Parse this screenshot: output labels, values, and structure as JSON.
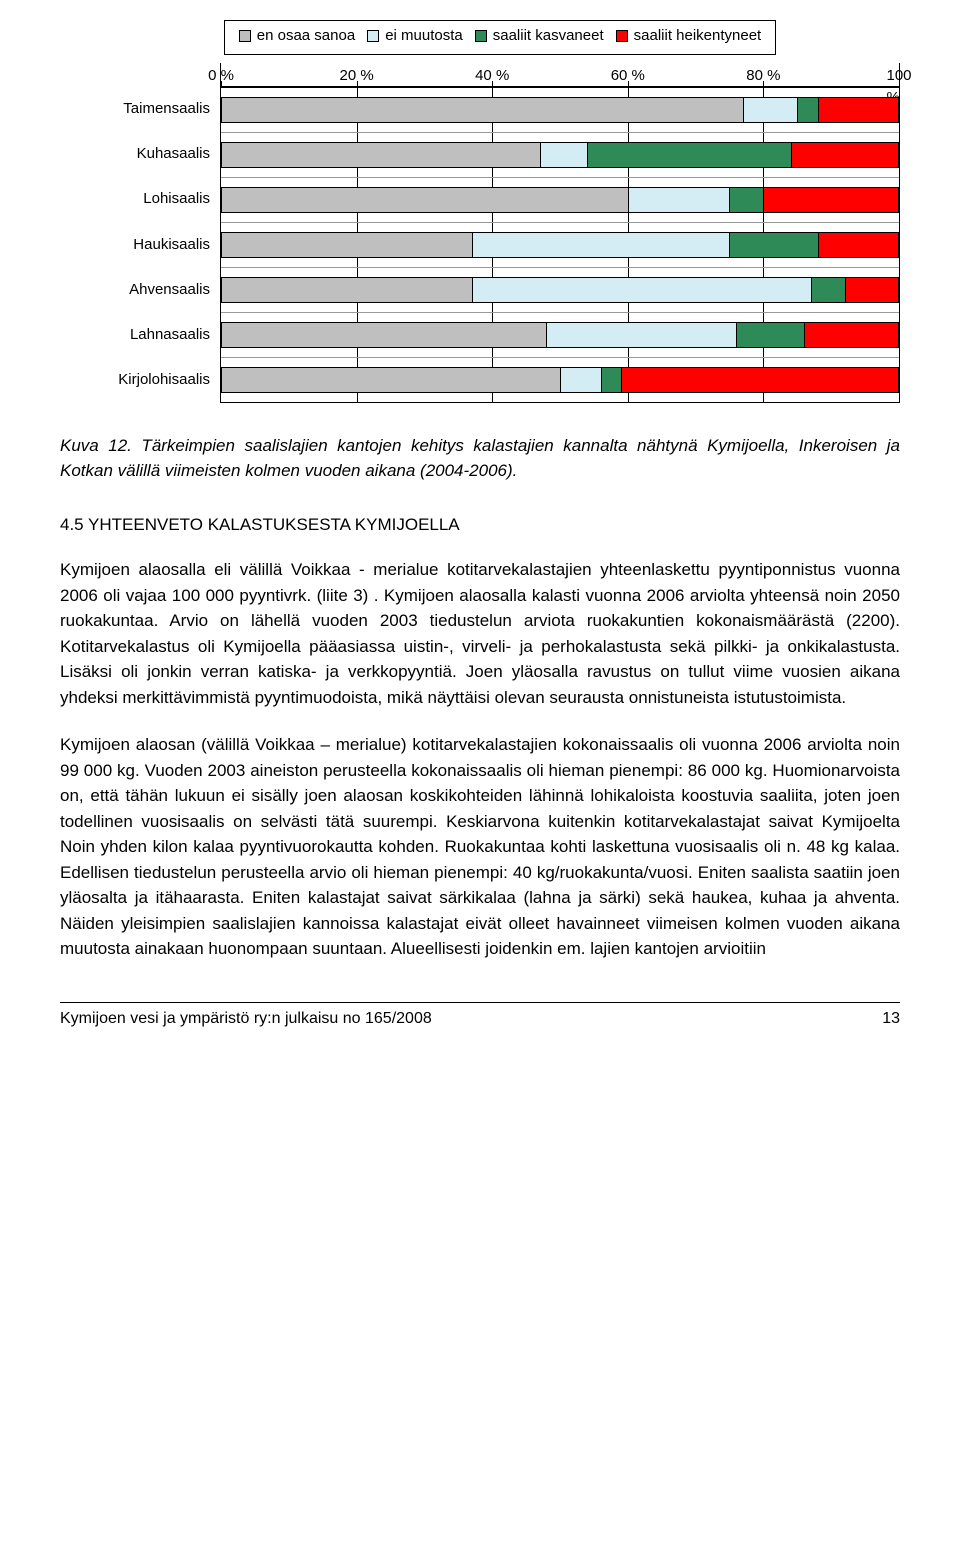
{
  "chart": {
    "type": "stacked-bar-horizontal",
    "legend": [
      {
        "label": "en osaa sanoa",
        "color": "#bfbfbf"
      },
      {
        "label": "ei muutosta",
        "color": "#d4ecf4"
      },
      {
        "label": "saaliit kasvaneet",
        "color": "#2e8b57"
      },
      {
        "label": "saaliit heikentyneet",
        "color": "#ff0000"
      }
    ],
    "x_ticks": [
      "0 %",
      "20 %",
      "40 %",
      "60 %",
      "80 %",
      "100 %"
    ],
    "x_max": 100,
    "categories": [
      {
        "label": "Taimensaalis",
        "segments": [
          77,
          8,
          3,
          12
        ]
      },
      {
        "label": "Kuhasaalis",
        "segments": [
          47,
          7,
          30,
          16
        ]
      },
      {
        "label": "Lohisaalis",
        "segments": [
          60,
          15,
          5,
          20
        ]
      },
      {
        "label": "Haukisaalis",
        "segments": [
          37,
          38,
          13,
          12
        ]
      },
      {
        "label": "Ahvensaalis",
        "segments": [
          37,
          50,
          5,
          8
        ]
      },
      {
        "label": "Lahnasaalis",
        "segments": [
          48,
          28,
          10,
          14
        ]
      },
      {
        "label": "Kirjolohisaalis",
        "segments": [
          50,
          6,
          3,
          41
        ]
      }
    ],
    "background_color": "#ffffff",
    "grid_color": "#000000",
    "font_size": 15
  },
  "caption": "Kuva 12. Tärkeimpien saalislajien kantojen kehitys kalastajien kannalta nähtynä Kymijoella, Inkeroisen ja Kotkan välillä viimeisten kolmen vuoden aikana (2004-2006).",
  "heading": "4.5  YHTEENVETO KALASTUKSESTA KYMIJOELLA",
  "paragraphs": [
    "Kymijoen alaosalla eli välillä Voikkaa - merialue kotitarvekalastajien yhteenlaskettu pyyntiponnistus vuonna 2006 oli vajaa 100 000 pyyntivrk. (liite 3) . Kymijoen alaosalla kalasti vuonna 2006 arviolta yhteensä noin 2050 ruokakuntaa. Arvio on lähellä vuoden 2003 tiedustelun arviota ruokakuntien kokonaismäärästä (2200). Kotitarvekalastus oli Kymijoella pääasiassa uistin-, virveli- ja perhokalastusta sekä pilkki- ja onkikalastusta. Lisäksi oli jonkin verran katiska- ja verkkopyyntiä. Joen yläosalla ravustus on tullut viime vuosien aikana yhdeksi merkittävimmistä pyyntimuodoista, mikä näyttäisi olevan seurausta onnistuneista istutustoimista.",
    "Kymijoen alaosan (välillä Voikkaa – merialue) kotitarvekalastajien kokonaissaalis oli vuonna 2006 arviolta noin 99 000 kg. Vuoden 2003 aineiston perusteella kokonaissaalis oli hieman pienempi: 86 000 kg. Huomionarvoista on, että tähän lukuun ei sisälly joen alaosan koskikohteiden lähinnä lohikaloista koostuvia saaliita, joten joen todellinen vuosisaalis on selvästi tätä suurempi. Keskiarvona kuitenkin kotitarvekalastajat saivat Kymijoelta Noin yhden kilon kalaa pyyntivuorokautta kohden. Ruokakuntaa kohti laskettuna vuosisaalis oli n. 48 kg kalaa. Edellisen tiedustelun perusteella arvio oli hieman pienempi: 40 kg/ruokakunta/vuosi. Eniten saalista saatiin joen yläosalta ja itähaarasta. Eniten kalastajat saivat särkikalaa (lahna ja särki) sekä haukea, kuhaa ja ahventa. Näiden yleisimpien saalislajien kannoissa kalastajat eivät olleet havainneet viimeisen kolmen vuoden aikana muutosta ainakaan huonompaan suuntaan. Alueellisesti joidenkin em. lajien kantojen arvioitiin"
  ],
  "footer": {
    "text": "Kymijoen vesi ja ympäristö ry:n julkaisu no 165/2008",
    "page": "13"
  }
}
